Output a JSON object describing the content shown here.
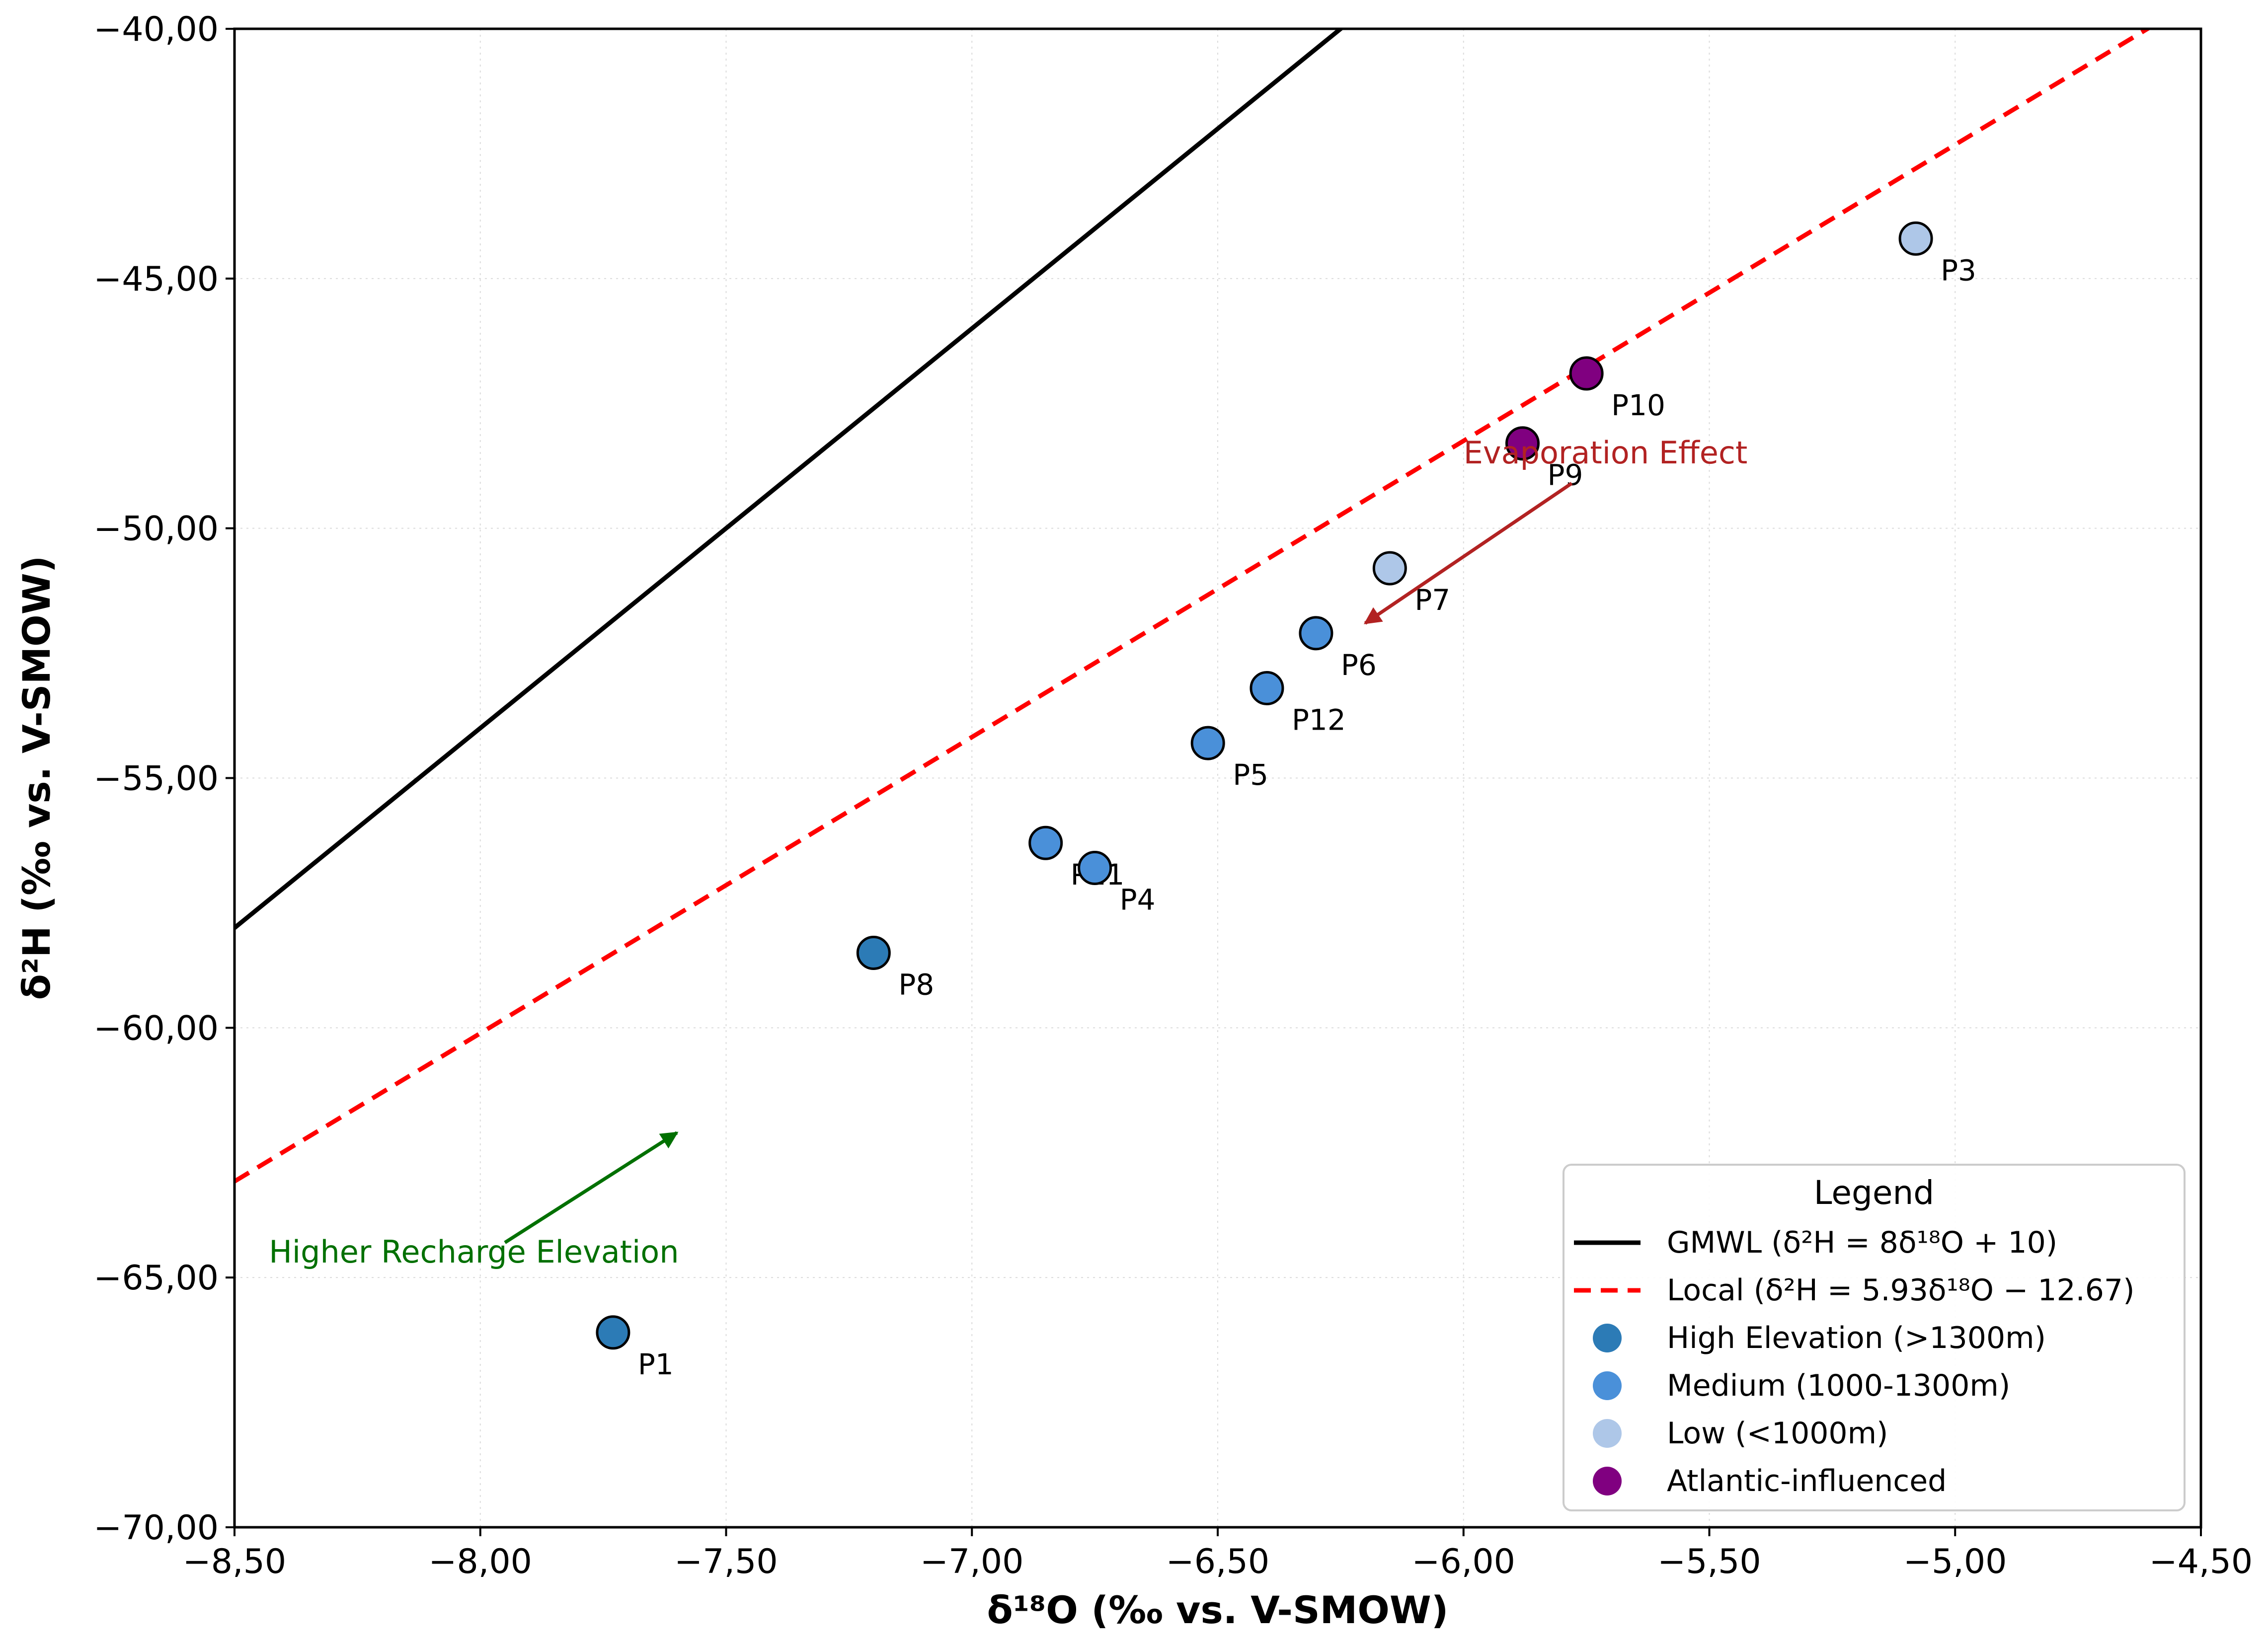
{
  "chart_data": {
    "type": "scatter",
    "title": "",
    "xlabel": "δ¹⁸O (‰ vs. V-SMOW)",
    "ylabel": "δ²H (‰ vs. V-SMOW)",
    "xlim": [
      -8.5,
      -4.5
    ],
    "ylim": [
      -70,
      -40
    ],
    "grid": true,
    "x_ticks": [
      -8.5,
      -8.0,
      -7.5,
      -7.0,
      -6.5,
      -6.0,
      -5.5,
      -5.0,
      -4.5
    ],
    "x_tick_labels": [
      "−8,50",
      "−8,00",
      "−7,50",
      "−7,00",
      "−6,50",
      "−6,00",
      "−5,50",
      "−5,00",
      "−4,50"
    ],
    "y_ticks": [
      -70,
      -65,
      -60,
      -55,
      -50,
      -45,
      -40
    ],
    "y_tick_labels": [
      "−70,00",
      "−65,00",
      "−60,00",
      "−55,00",
      "−50,00",
      "−45,00",
      "−40,00"
    ],
    "lines": [
      {
        "name": "GMWL",
        "slope": 8,
        "intercept": 10,
        "color": "#000000",
        "style": "solid"
      },
      {
        "name": "Local",
        "slope": 5.93,
        "intercept": -12.67,
        "color": "#ff0000",
        "style": "dashed"
      }
    ],
    "series": [
      {
        "name": "High Elevation (>1300m)",
        "color": "#2c7bb6",
        "points": [
          {
            "label": "P1",
            "x": -7.73,
            "y": -66.1
          },
          {
            "label": "P8",
            "x": -7.2,
            "y": -58.5
          }
        ]
      },
      {
        "name": "Medium (1000-1300m)",
        "color": "#4a90d9",
        "points": [
          {
            "label": "P11",
            "x": -6.85,
            "y": -56.3
          },
          {
            "label": "P4",
            "x": -6.75,
            "y": -56.8
          },
          {
            "label": "P5",
            "x": -6.52,
            "y": -54.3
          },
          {
            "label": "P12",
            "x": -6.4,
            "y": -53.2
          },
          {
            "label": "P6",
            "x": -6.3,
            "y": -52.1
          }
        ]
      },
      {
        "name": "Low (<1000m)",
        "color": "#aec7e8",
        "points": [
          {
            "label": "P7",
            "x": -6.15,
            "y": -50.8
          },
          {
            "label": "P3",
            "x": -5.08,
            "y": -44.2
          }
        ]
      },
      {
        "name": "Atlantic-influenced",
        "color": "#800080",
        "points": [
          {
            "label": "P9",
            "x": -5.88,
            "y": -48.3
          },
          {
            "label": "P10",
            "x": -5.75,
            "y": -46.9
          }
        ]
      }
    ],
    "annotations": [
      {
        "text": "Evaporation Effect",
        "color": "#b22222",
        "text_x": -6.0,
        "text_y": -48.7,
        "arrow_from": [
          -5.78,
          -49.1
        ],
        "arrow_to": [
          -6.2,
          -51.9
        ]
      },
      {
        "text": "Higher Recharge Elevation",
        "color": "#007000",
        "text_x": -8.43,
        "text_y": -64.7,
        "arrow_from": [
          -7.95,
          -64.3
        ],
        "arrow_to": [
          -7.6,
          -62.1
        ]
      }
    ],
    "legend": {
      "title": "Legend",
      "position": "lower-right",
      "entries": [
        "GMWL (δ²H = 8δ¹⁸O + 10)",
        "Local (δ²H = 5.93δ¹⁸O − 12.67)",
        "High Elevation (>1300m)",
        "Medium (1000-1300m)",
        "Low (<1000m)",
        "Atlantic-influenced"
      ]
    }
  }
}
